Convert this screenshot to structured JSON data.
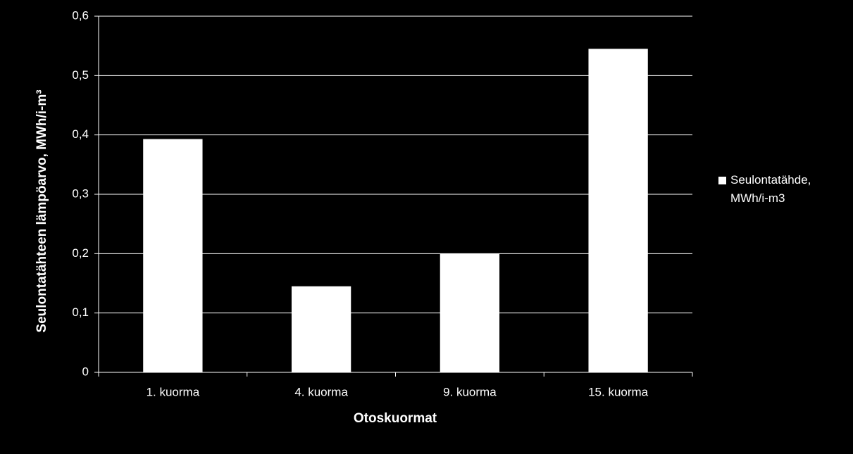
{
  "chart_data": {
    "type": "bar",
    "x_label": "Otoskuormat",
    "y_label": "Seulontatähteen lämpöarvo, MWh/i-m³",
    "categories": [
      "1. kuorma",
      "4. kuorma",
      "9. kuorma",
      "15. kuorma"
    ],
    "series": [
      {
        "name": "Seulontatähde, MWh/i-m3",
        "color": "#ffffff",
        "values": [
          0.393,
          0.145,
          0.2,
          0.545
        ]
      }
    ],
    "ylim": [
      0,
      0.6
    ],
    "yticks": [
      0,
      {
        "value": 0.1,
        "label": "0,1"
      },
      {
        "value": 0.2,
        "label": "0,2"
      },
      {
        "value": 0.3,
        "label": "0,3"
      },
      {
        "value": 0.4,
        "label": "0,4"
      },
      {
        "value": 0.5,
        "label": "0,5"
      },
      {
        "value": 0.6,
        "label": "0,6"
      }
    ],
    "grid": true,
    "legend": "right"
  }
}
